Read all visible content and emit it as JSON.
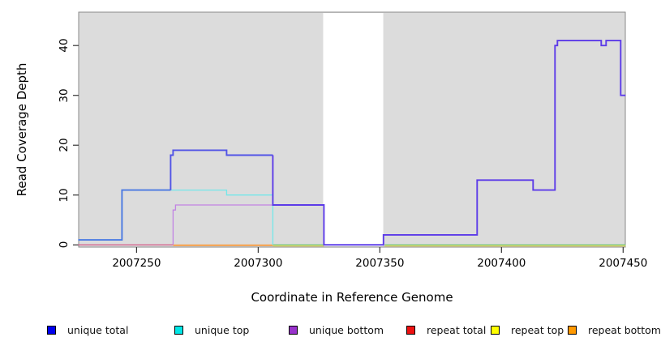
{
  "axes": {
    "x_label": "Coordinate in Reference Genome",
    "y_label": "Read Coverage Depth",
    "x_ticks": [
      {
        "value": 2007250,
        "label": "2007250"
      },
      {
        "value": 2007300,
        "label": "2007300"
      },
      {
        "value": 2007350,
        "label": "2007350"
      },
      {
        "value": 2007400,
        "label": "2007400"
      },
      {
        "value": 2007450,
        "label": "2007450"
      }
    ],
    "y_ticks": [
      {
        "value": 0,
        "label": "0"
      },
      {
        "value": 10,
        "label": "10"
      },
      {
        "value": 20,
        "label": "20"
      },
      {
        "value": 30,
        "label": "30"
      },
      {
        "value": 40,
        "label": "40"
      }
    ]
  },
  "legend": {
    "items": [
      {
        "label": "unique total",
        "color": "#0000ee",
        "x": 58
      },
      {
        "label": "unique top",
        "color": "#00e6e6",
        "x": 215
      },
      {
        "label": "unique bottom",
        "color": "#9932cc",
        "x": 356
      },
      {
        "label": "repeat total",
        "color": "#ee1111",
        "x": 501
      },
      {
        "label": "repeat top",
        "color": "#ffff00",
        "x": 605
      },
      {
        "label": "repeat bottom",
        "color": "#ff9900",
        "x": 700
      }
    ]
  },
  "style": {
    "panel_bg": "#dcdcdc",
    "panel_border": "#8a8a8a",
    "tick_color": "#333333",
    "gap_fill": "#ffffff"
  },
  "chart_data": {
    "type": "line",
    "title": "",
    "xlabel": "Coordinate in Reference Genome",
    "ylabel": "Read Coverage Depth",
    "xlim": [
      2007226.2,
      2007450.9
    ],
    "ylim": [
      -0.45,
      46.7
    ],
    "grid": false,
    "legend_position": "bottom",
    "gap_region": {
      "start": 2007326.7,
      "end": 2007351.4
    },
    "coverage_steps": {
      "unique_total": [
        [
          2007226,
          1
        ],
        [
          2007244,
          11
        ],
        [
          2007264,
          18
        ],
        [
          2007265,
          19
        ],
        [
          2007287,
          18
        ],
        [
          2007306,
          8
        ],
        [
          2007327,
          0
        ],
        [
          2007352,
          2
        ],
        [
          2007390,
          13
        ],
        [
          2007413,
          11
        ],
        [
          2007422,
          40
        ],
        [
          2007423,
          41
        ],
        [
          2007441,
          40
        ],
        [
          2007443,
          41
        ],
        [
          2007449,
          30
        ],
        [
          2007451,
          30
        ]
      ],
      "unique_top": [
        [
          2007264,
          11
        ],
        [
          2007287,
          10
        ],
        [
          2007306,
          0
        ]
      ],
      "unique_bottom": [
        [
          2007265,
          7
        ],
        [
          2007266,
          8
        ],
        [
          2007306,
          0
        ]
      ],
      "repeat_total": [
        [
          2007226,
          0
        ],
        [
          2007265,
          0
        ]
      ],
      "repeat_top": [
        [
          2007306,
          0
        ],
        [
          2007451,
          0
        ]
      ],
      "repeat_bottom": [
        [
          2007265,
          0
        ],
        [
          2007306,
          0
        ]
      ]
    },
    "painted_series": [
      {
        "name": "repeat-total-zero",
        "color": "#d4668f",
        "width": 1.4,
        "dy": 0,
        "pts": [
          [
            2007226,
            0
          ],
          [
            2007265,
            0
          ]
        ]
      },
      {
        "name": "repeat-bottom-zero",
        "color": "#ff8c1a",
        "width": 1.5,
        "dy": 0.4,
        "pts": [
          [
            2007265,
            0
          ],
          [
            2007306,
            0
          ]
        ]
      },
      {
        "name": "repeat-top-zero-mid",
        "color": "#e6d95c",
        "width": 1.2,
        "dy": 1.4,
        "pts": [
          [
            2007306,
            0
          ],
          [
            2007327,
            0
          ]
        ]
      },
      {
        "name": "repeat-top-zero-right",
        "color": "#e6d95c",
        "width": 1.2,
        "dy": 1.4,
        "pts": [
          [
            2007352,
            0
          ],
          [
            2007451,
            0
          ]
        ]
      },
      {
        "name": "unique-top-zero-mid",
        "color": "#7cc87c",
        "width": 1.3,
        "dy": 0,
        "pts": [
          [
            2007306,
            0
          ],
          [
            2007327,
            0
          ]
        ]
      },
      {
        "name": "unique-top-zero-right",
        "color": "#7cc87c",
        "width": 1.3,
        "dy": 0,
        "pts": [
          [
            2007352,
            0
          ],
          [
            2007451,
            0
          ]
        ]
      },
      {
        "name": "unique-top",
        "color": "#74e7e9",
        "width": 1.3,
        "dy": 0,
        "pts": [
          [
            2007264,
            11
          ],
          [
            2007287,
            11
          ],
          [
            2007287,
            10
          ],
          [
            2007306,
            10
          ],
          [
            2007306,
            0
          ]
        ]
      },
      {
        "name": "unique-bottom",
        "color": "#c183e3",
        "width": 1.3,
        "dy": 0,
        "pts": [
          [
            2007265,
            0
          ],
          [
            2007265,
            7
          ],
          [
            2007266,
            7
          ],
          [
            2007266,
            8
          ],
          [
            2007306,
            8
          ]
        ]
      },
      {
        "name": "unique-total-left",
        "color": "#4a79e2",
        "width": 1.9,
        "dy": 0,
        "pts": [
          [
            2007226,
            1
          ],
          [
            2007244,
            1
          ],
          [
            2007244,
            11
          ],
          [
            2007264,
            11
          ]
        ]
      },
      {
        "name": "unique-total-mid",
        "color": "#5153e6",
        "width": 1.9,
        "dy": 0,
        "pts": [
          [
            2007264,
            11
          ],
          [
            2007264,
            18
          ],
          [
            2007265,
            18
          ],
          [
            2007265,
            19
          ],
          [
            2007287,
            19
          ],
          [
            2007287,
            18
          ],
          [
            2007306,
            18
          ]
        ]
      },
      {
        "name": "unique-total-right",
        "color": "#5c3be8",
        "width": 1.9,
        "dy": 0,
        "pts": [
          [
            2007306,
            18
          ],
          [
            2007306,
            8
          ],
          [
            2007327,
            8
          ],
          [
            2007327,
            0
          ],
          [
            2007351.5,
            0
          ],
          [
            2007351.5,
            2
          ],
          [
            2007390,
            2
          ],
          [
            2007390,
            13
          ],
          [
            2007413,
            13
          ],
          [
            2007413,
            11
          ],
          [
            2007422,
            11
          ],
          [
            2007422,
            40
          ],
          [
            2007423,
            40
          ],
          [
            2007423,
            41
          ],
          [
            2007441,
            41
          ],
          [
            2007441,
            40
          ],
          [
            2007443,
            40
          ],
          [
            2007443,
            41
          ],
          [
            2007449,
            41
          ],
          [
            2007449,
            30
          ],
          [
            2007451,
            30
          ]
        ]
      }
    ]
  }
}
